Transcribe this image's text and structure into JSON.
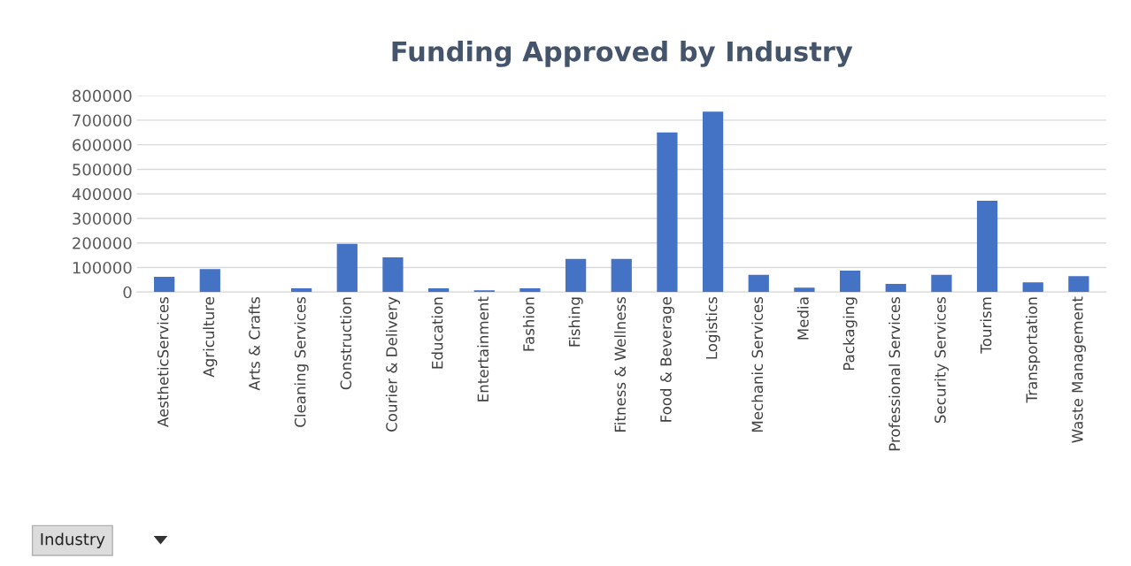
{
  "chart_data": {
    "type": "bar",
    "title": "Funding Approved by Industry",
    "categories": [
      "AestheticServices",
      "Agriculture",
      "Arts & Crafts",
      "Cleaning Services",
      "Construction",
      "Courier & Delivery",
      "Education",
      "Entertainment",
      "Fashion",
      "Fishing",
      "Fitness & Wellness",
      "Food & Beverage",
      "Logistics",
      "Mechanic Services",
      "Media",
      "Packaging",
      "Professional Services",
      "Security Services",
      "Tourism",
      "Transportation",
      "Waste Management"
    ],
    "values": [
      62000,
      94000,
      0,
      15000,
      196000,
      141000,
      15000,
      7000,
      15000,
      135000,
      135000,
      650000,
      735000,
      70000,
      18000,
      87000,
      33000,
      70000,
      372000,
      40000,
      65000
    ],
    "color": "#4472c4",
    "ylim": [
      0,
      800000
    ],
    "yticks": [
      0,
      100000,
      200000,
      300000,
      400000,
      500000,
      600000,
      700000,
      800000
    ],
    "grid": "y",
    "annotations": [
      "Industry"
    ]
  }
}
